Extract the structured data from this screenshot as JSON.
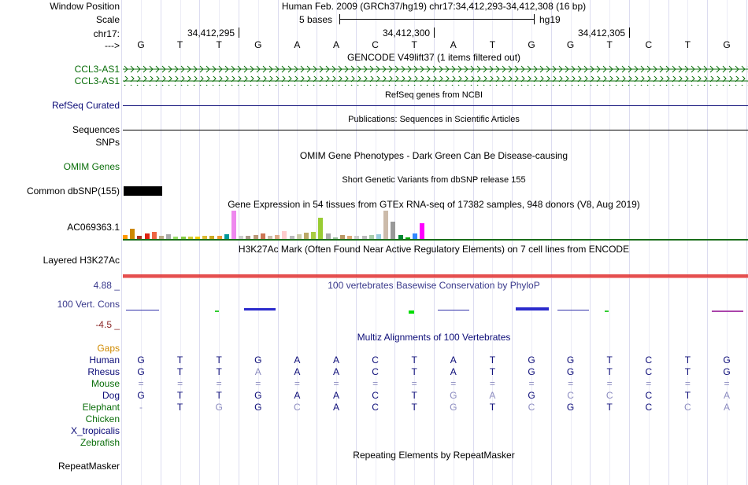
{
  "header": {
    "window_position_label": "Window Position",
    "window_position_value": "Human Feb. 2009 (GRCh37/hg19)   chr17:34,412,293-34,412,308 (16 bp)",
    "scale_label": "Scale",
    "scale_text": "5 bases",
    "assembly": "hg19",
    "chrom_label": "chr17:",
    "arrow_label": "--->",
    "positions": [
      "34,412,295",
      "34,412,300",
      "34,412,305"
    ]
  },
  "dna_sequence": [
    "G",
    "T",
    "T",
    "G",
    "A",
    "A",
    "C",
    "T",
    "A",
    "T",
    "G",
    "G",
    "T",
    "C",
    "T",
    "G"
  ],
  "tracks": {
    "gencode": {
      "title": "GENCODE V49lift37 (1 items filtered out)",
      "items": [
        "CCL3-AS1",
        "CCL3-AS1"
      ],
      "color": "#0a6e0a"
    },
    "refseq": {
      "title": "RefSeq genes from NCBI",
      "label": "RefSeq Curated",
      "color": "#0c0c78"
    },
    "publications": {
      "title": "Publications: Sequences in Scientific Articles",
      "label": "Sequences"
    },
    "snps_label": "SNPs",
    "omim": {
      "title": "OMIM Gene Phenotypes - Dark Green Can Be Disease-causing",
      "label": "OMIM Genes",
      "color": "#0a6e0a"
    },
    "dbsnp": {
      "title": "Short Genetic Variants from dbSNP release 155",
      "label": "Common dbSNP(155)"
    },
    "gtex": {
      "title": "Gene Expression in 54 tissues from GTEx RNA-seq of 17382 samples, 948 donors (V8, Aug 2019)",
      "label": "AC069363.1",
      "bars": [
        {
          "v": 0.15,
          "c": "#ff9900"
        },
        {
          "v": 0.35,
          "c": "#cc8800"
        },
        {
          "v": 0.1,
          "c": "#aa3322"
        },
        {
          "v": 0.2,
          "c": "#dd2211"
        },
        {
          "v": 0.25,
          "c": "#ee6644"
        },
        {
          "v": 0.12,
          "c": "#bbaa88"
        },
        {
          "v": 0.18,
          "c": "#aaaaaa"
        },
        {
          "v": 0.08,
          "c": "#99dd66"
        },
        {
          "v": 0.08,
          "c": "#88cc44"
        },
        {
          "v": 0.08,
          "c": "#cccc33"
        },
        {
          "v": 0.08,
          "c": "#eecc00"
        },
        {
          "v": 0.1,
          "c": "#ddbb33"
        },
        {
          "v": 0.12,
          "c": "#ccaa22"
        },
        {
          "v": 0.12,
          "c": "#ee9933"
        },
        {
          "v": 0.17,
          "c": "#009999"
        },
        {
          "v": 1.0,
          "c": "#ee88ee"
        },
        {
          "v": 0.1,
          "c": "#cccccc"
        },
        {
          "v": 0.1,
          "c": "#aa9988"
        },
        {
          "v": 0.15,
          "c": "#bb9977"
        },
        {
          "v": 0.2,
          "c": "#cc7755"
        },
        {
          "v": 0.12,
          "c": "#ccbbaa"
        },
        {
          "v": 0.15,
          "c": "#ddaa88"
        },
        {
          "v": 0.28,
          "c": "#ffcccc"
        },
        {
          "v": 0.1,
          "c": "#bbbbbb"
        },
        {
          "v": 0.18,
          "c": "#ccccaa"
        },
        {
          "v": 0.22,
          "c": "#bbaa66"
        },
        {
          "v": 0.25,
          "c": "#aacc44"
        },
        {
          "v": 0.75,
          "c": "#99cc33"
        },
        {
          "v": 0.2,
          "c": "#aaaaaa"
        },
        {
          "v": 0.05,
          "c": "#99bb99"
        },
        {
          "v": 0.15,
          "c": "#bb9966"
        },
        {
          "v": 0.1,
          "c": "#ddaa77"
        },
        {
          "v": 0.12,
          "c": "#cccccc"
        },
        {
          "v": 0.12,
          "c": "#bbbbbb"
        },
        {
          "v": 0.15,
          "c": "#aaccaa"
        },
        {
          "v": 0.17,
          "c": "#99ccdd"
        },
        {
          "v": 1.0,
          "c": "#ccbbaa"
        },
        {
          "v": 0.62,
          "c": "#999999"
        },
        {
          "v": 0.15,
          "c": "#008833"
        },
        {
          "v": 0.05,
          "c": "#00aa00"
        },
        {
          "v": 0.2,
          "c": "#3388ff"
        },
        {
          "v": 0.55,
          "c": "#ff00ff"
        }
      ]
    },
    "h3k27ac": {
      "title": "H3K27Ac Mark (Often Found Near Active Regulatory Elements) on 7 cell lines from ENCODE",
      "label": "Layered H3K27Ac"
    },
    "conservation": {
      "title": "100 vertebrates Basewise Conservation by PhyloP",
      "label": "100 Vert. Cons",
      "max": "4.88 _",
      "min": "-4.5 _",
      "label_color": "#3a3a8c",
      "max_color": "#3a3a8c",
      "min_color": "#8c2a2a"
    },
    "multiz": {
      "title": "Multiz Alignments of 100 Vertebrates",
      "gaps_label": "Gaps",
      "species": [
        {
          "name": "Human",
          "color": "#0c0c78",
          "bases": [
            "G",
            "T",
            "T",
            "G",
            "A",
            "A",
            "C",
            "T",
            "A",
            "T",
            "G",
            "G",
            "T",
            "C",
            "T",
            "G"
          ]
        },
        {
          "name": "Rhesus",
          "color": "#0c0c78",
          "bases": [
            "G",
            "T",
            "T",
            "A",
            "A",
            "A",
            "C",
            "T",
            "A",
            "T",
            "G",
            "G",
            "T",
            "C",
            "T",
            "G"
          ]
        },
        {
          "name": "Mouse",
          "color": "#0a6e0a",
          "bases": [
            "=",
            "=",
            "=",
            "=",
            "=",
            "=",
            "=",
            "=",
            "=",
            "=",
            "=",
            "=",
            "=",
            "=",
            "=",
            "="
          ]
        },
        {
          "name": "Dog",
          "color": "#0c0c78",
          "bases": [
            "G",
            "T",
            "T",
            "G",
            "A",
            "A",
            "C",
            "T",
            "G",
            "A",
            "G",
            "C",
            "C",
            "C",
            "T",
            "A"
          ]
        },
        {
          "name": "Elephant",
          "color": "#0a6e0a",
          "bases": [
            "-",
            "T",
            "G",
            "G",
            "C",
            "A",
            "C",
            "T",
            "G",
            "T",
            "C",
            "G",
            "T",
            "C",
            "C",
            "A"
          ]
        },
        {
          "name": "Chicken",
          "color": "#0a6e0a",
          "bases": []
        },
        {
          "name": "X_tropicalis",
          "color": "#0c0c78",
          "bases": []
        },
        {
          "name": "Zebrafish",
          "color": "#0a6e0a",
          "bases": []
        }
      ]
    },
    "repeatmasker": {
      "title": "Repeating Elements by RepeatMasker",
      "label": "RepeatMasker"
    }
  },
  "colors": {
    "gaps_label": "#d08a00",
    "dark_blue": "#0c0c78",
    "dark_green": "#0a6e0a",
    "grid": "#dcdcf0",
    "h3k27ac_line": "#e03030"
  }
}
